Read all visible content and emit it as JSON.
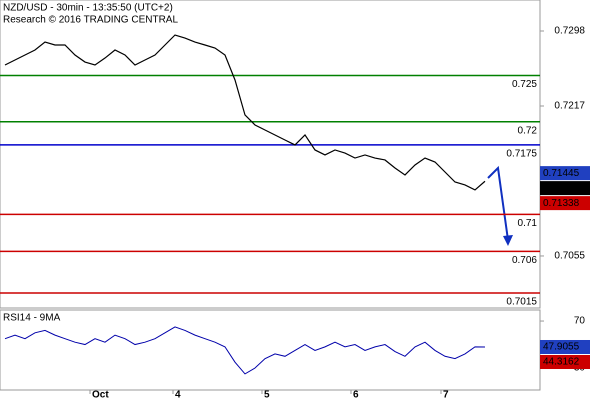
{
  "chart_data": {
    "type": "line",
    "title": "NZD/USD - 30min - 13:35:50 (UTC+2)",
    "subtitle": "Research © 2016 TRADING CENTRAL",
    "x": [
      0,
      1,
      2,
      3,
      4,
      5,
      6,
      7,
      8,
      9,
      10,
      11,
      12,
      13,
      14,
      15,
      16,
      17,
      18,
      19,
      20,
      21,
      22,
      23,
      24,
      25,
      26,
      27,
      28,
      29,
      30,
      31,
      32,
      33,
      34,
      35,
      36,
      37,
      38,
      39,
      40,
      41,
      42,
      43,
      44,
      45,
      46,
      47,
      48
    ],
    "xlim": [
      -0.5,
      53.5
    ],
    "xticks": [
      {
        "value": 8.5,
        "label": "Oct"
      },
      {
        "value": 16.8,
        "label": "4"
      },
      {
        "value": 25.7,
        "label": "5"
      },
      {
        "value": 34.6,
        "label": "6"
      },
      {
        "value": 43.6,
        "label": "7"
      }
    ],
    "series": [
      {
        "color": "#000000",
        "values": [
          0.72613,
          0.72667,
          0.72721,
          0.72775,
          0.72861,
          0.72829,
          0.72829,
          0.72721,
          0.72645,
          0.72613,
          0.72688,
          0.72775,
          0.72721,
          0.72613,
          0.72667,
          0.72721,
          0.72829,
          0.72937,
          0.72904,
          0.72861,
          0.72829,
          0.72796,
          0.72721,
          0.72451,
          0.72073,
          0.71965,
          0.71911,
          0.71857,
          0.71803,
          0.71749,
          0.71857,
          0.71695,
          0.71641,
          0.71695,
          0.71662,
          0.71608,
          0.71641,
          0.71608,
          0.71587,
          0.715,
          0.71425,
          0.71533,
          0.71608,
          0.71565,
          0.71457,
          0.71349,
          0.71317,
          0.71263,
          0.71357
        ]
      }
    ],
    "ylim": [
      0.69988,
      0.73315
    ],
    "yticks": [
      0.7298,
      0.7217,
      0.7055
    ],
    "levels": [
      {
        "value": 0.725,
        "color": "#008000"
      },
      {
        "value": 0.72,
        "color": "#008000"
      },
      {
        "value": 0.7175,
        "color": "#0000cc"
      },
      {
        "value": 0.71,
        "color": "#cc0000"
      },
      {
        "value": 0.706,
        "color": "#cc0000"
      },
      {
        "value": 0.7015,
        "color": "#cc0000"
      }
    ],
    "price_tags": [
      {
        "value": 0.71445,
        "color": "#2040c0"
      },
      {
        "value": 0.71357,
        "color": "#000000"
      },
      {
        "value": 0.71338,
        "color": "#cc0000"
      }
    ],
    "rsi": {
      "title": "RSI14 - 9MA",
      "color": "#0000aa",
      "values": [
        55,
        58,
        55,
        60,
        62,
        58,
        55,
        52,
        50,
        55,
        52,
        58,
        55,
        50,
        52,
        55,
        60,
        65,
        62,
        58,
        55,
        52,
        48,
        35,
        25,
        30,
        38,
        42,
        40,
        45,
        50,
        45,
        48,
        52,
        48,
        50,
        45,
        48,
        50,
        44,
        40,
        48,
        52,
        45,
        40,
        38,
        42,
        48,
        47.9055
      ],
      "ylim": [
        11.3,
        79.4
      ],
      "yticks": [
        70,
        30
      ],
      "tags": [
        {
          "value": 47.9055,
          "color": "#2040c0"
        },
        {
          "value": 44.3162,
          "color": "#cc0000"
        }
      ]
    }
  }
}
